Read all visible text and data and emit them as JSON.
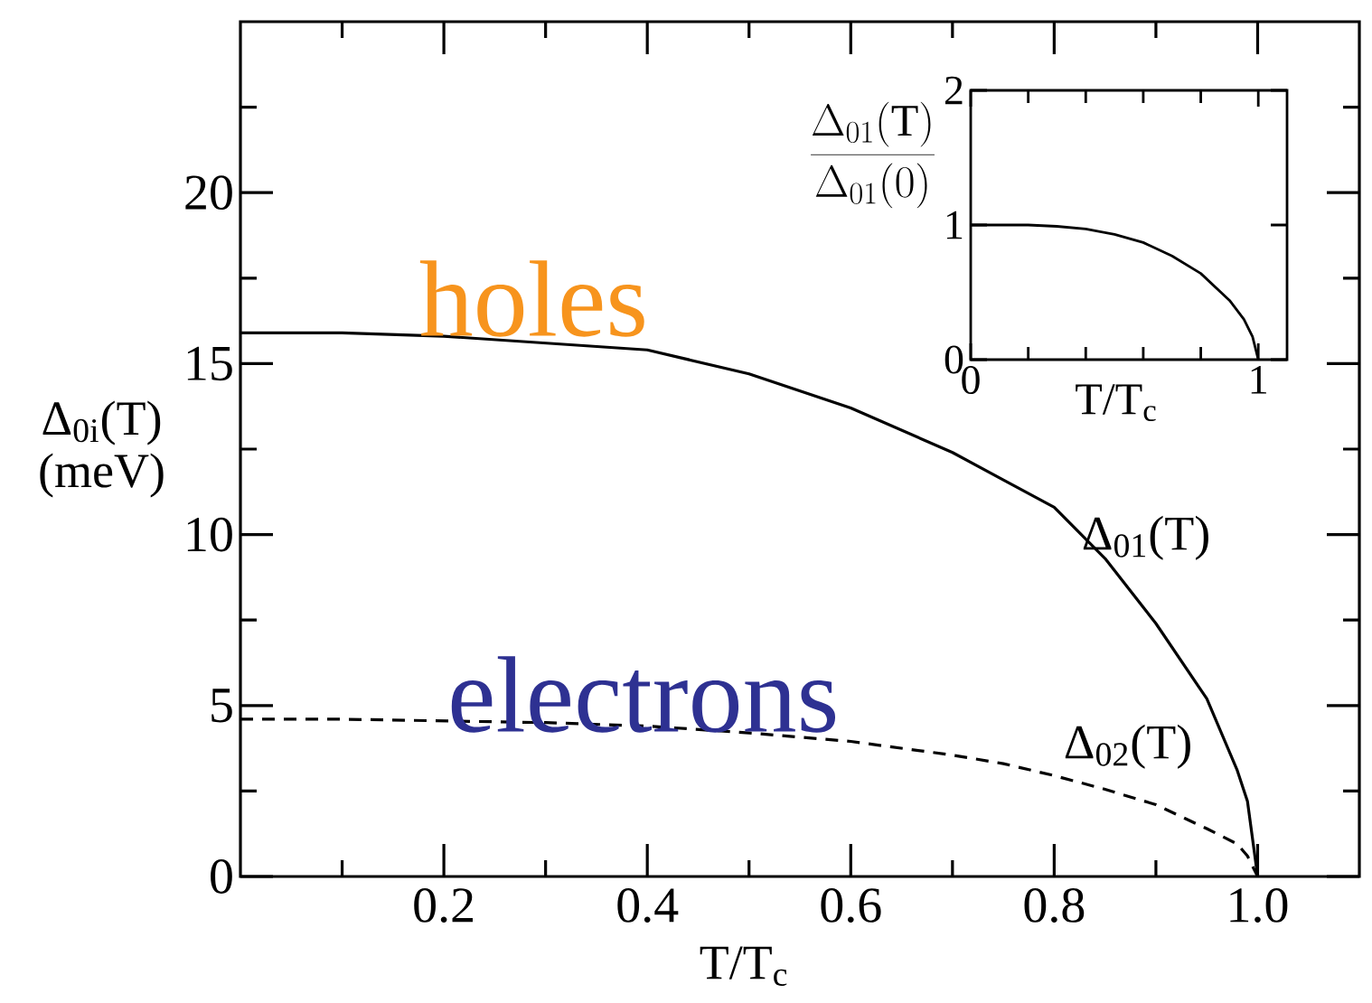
{
  "chart_data": [
    {
      "type": "line",
      "xlabel": "T/T$_{c}$",
      "ylabel": "Δ$_{0i}$(T) (meV)",
      "x": [
        0,
        0.1,
        0.2,
        0.3,
        0.4,
        0.5,
        0.6,
        0.7,
        0.75,
        0.8,
        0.85,
        0.9,
        0.95,
        0.98,
        0.99,
        1
      ],
      "series": [
        {
          "name": "Δ$_{01}$(T)",
          "color": "#000000",
          "line_style": "solid",
          "values": [
            15.9,
            15.9,
            15.8,
            15.6,
            15.4,
            14.7,
            13.7,
            12.4,
            11.6,
            10.8,
            9.3,
            7.4,
            5.2,
            3.1,
            2.2,
            0
          ]
        },
        {
          "name": "Δ$_{02}$(T)",
          "color": "#000000",
          "line_style": "dashed",
          "values": [
            4.6,
            4.6,
            4.55,
            4.5,
            4.4,
            4.2,
            3.95,
            3.55,
            3.3,
            2.95,
            2.55,
            2.1,
            1.4,
            0.95,
            0.6,
            0
          ]
        }
      ],
      "xlim": [
        0,
        1.1
      ],
      "ylim": [
        0,
        25
      ],
      "xticks": [
        {
          "value": 0.1,
          "label": null
        },
        0.2,
        {
          "value": 0.3,
          "label": null
        },
        0.4,
        {
          "value": 0.5,
          "label": null
        },
        0.6,
        {
          "value": 0.7,
          "label": null
        },
        0.8,
        {
          "value": 0.9,
          "label": null
        },
        {
          "value": 1,
          "label": "1.0"
        }
      ],
      "yticks": [
        0,
        {
          "value": 2.5,
          "label": null
        },
        5,
        {
          "value": 7.5,
          "label": null
        },
        10,
        {
          "value": 12.5,
          "label": null
        },
        15,
        {
          "value": 17.5,
          "label": null
        },
        20,
        {
          "value": 22.5,
          "label": null
        }
      ],
      "annotations": [
        "holes",
        "electrons"
      ]
    },
    {
      "type": "line",
      "xlabel": "T/T$_{c}$",
      "ylabel": "\\frac{\\Delta_{01}(\\mathrm{T})}{\\Delta_{01}(0)}",
      "x": [
        0,
        0.2,
        0.3,
        0.4,
        0.5,
        0.6,
        0.7,
        0.8,
        0.9,
        0.95,
        0.98,
        1
      ],
      "values": [
        1,
        1,
        0.99,
        0.97,
        0.93,
        0.87,
        0.77,
        0.64,
        0.44,
        0.3,
        0.17,
        0
      ],
      "color": "#000000",
      "xlim": [
        0,
        1.1
      ],
      "ylim": [
        0,
        2
      ],
      "xticks": [
        0,
        {
          "value": 0.2,
          "label": null
        },
        {
          "value": 0.4,
          "label": null
        },
        {
          "value": 0.6,
          "label": null
        },
        {
          "value": 0.8,
          "label": null
        },
        1
      ],
      "yticks": [
        0,
        1,
        2
      ]
    }
  ]
}
